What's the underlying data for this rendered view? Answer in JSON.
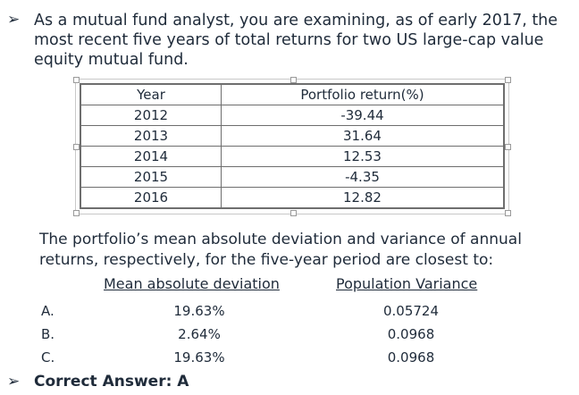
{
  "question": {
    "bullet": "➢",
    "text": "As a mutual fund analyst, you are examining, as of early 2017, the most recent five years of total returns for two US large-cap value equity mutual fund."
  },
  "returns_table": {
    "headers": [
      "Year",
      "Portfolio return(%)"
    ],
    "rows": [
      [
        "2012",
        "-39.44"
      ],
      [
        "2013",
        "31.64"
      ],
      [
        "2014",
        "12.53"
      ],
      [
        "2015",
        "-4.35"
      ],
      [
        "2016",
        "12.82"
      ]
    ]
  },
  "stem": "The portfolio’s mean absolute deviation and variance of annual returns, respectively, for the five-year period are closest to:",
  "options_header": {
    "mad": "Mean absolute deviation",
    "variance": "Population Variance"
  },
  "options": [
    {
      "letter": "A.",
      "mad": "19.63%",
      "variance": "0.05724"
    },
    {
      "letter": "B.",
      "mad": "2.64%",
      "variance": "0.0968"
    },
    {
      "letter": "C.",
      "mad": "19.63%",
      "variance": "0.0968"
    }
  ],
  "answer": {
    "bullet": "➢",
    "text": "Correct Answer: A"
  }
}
